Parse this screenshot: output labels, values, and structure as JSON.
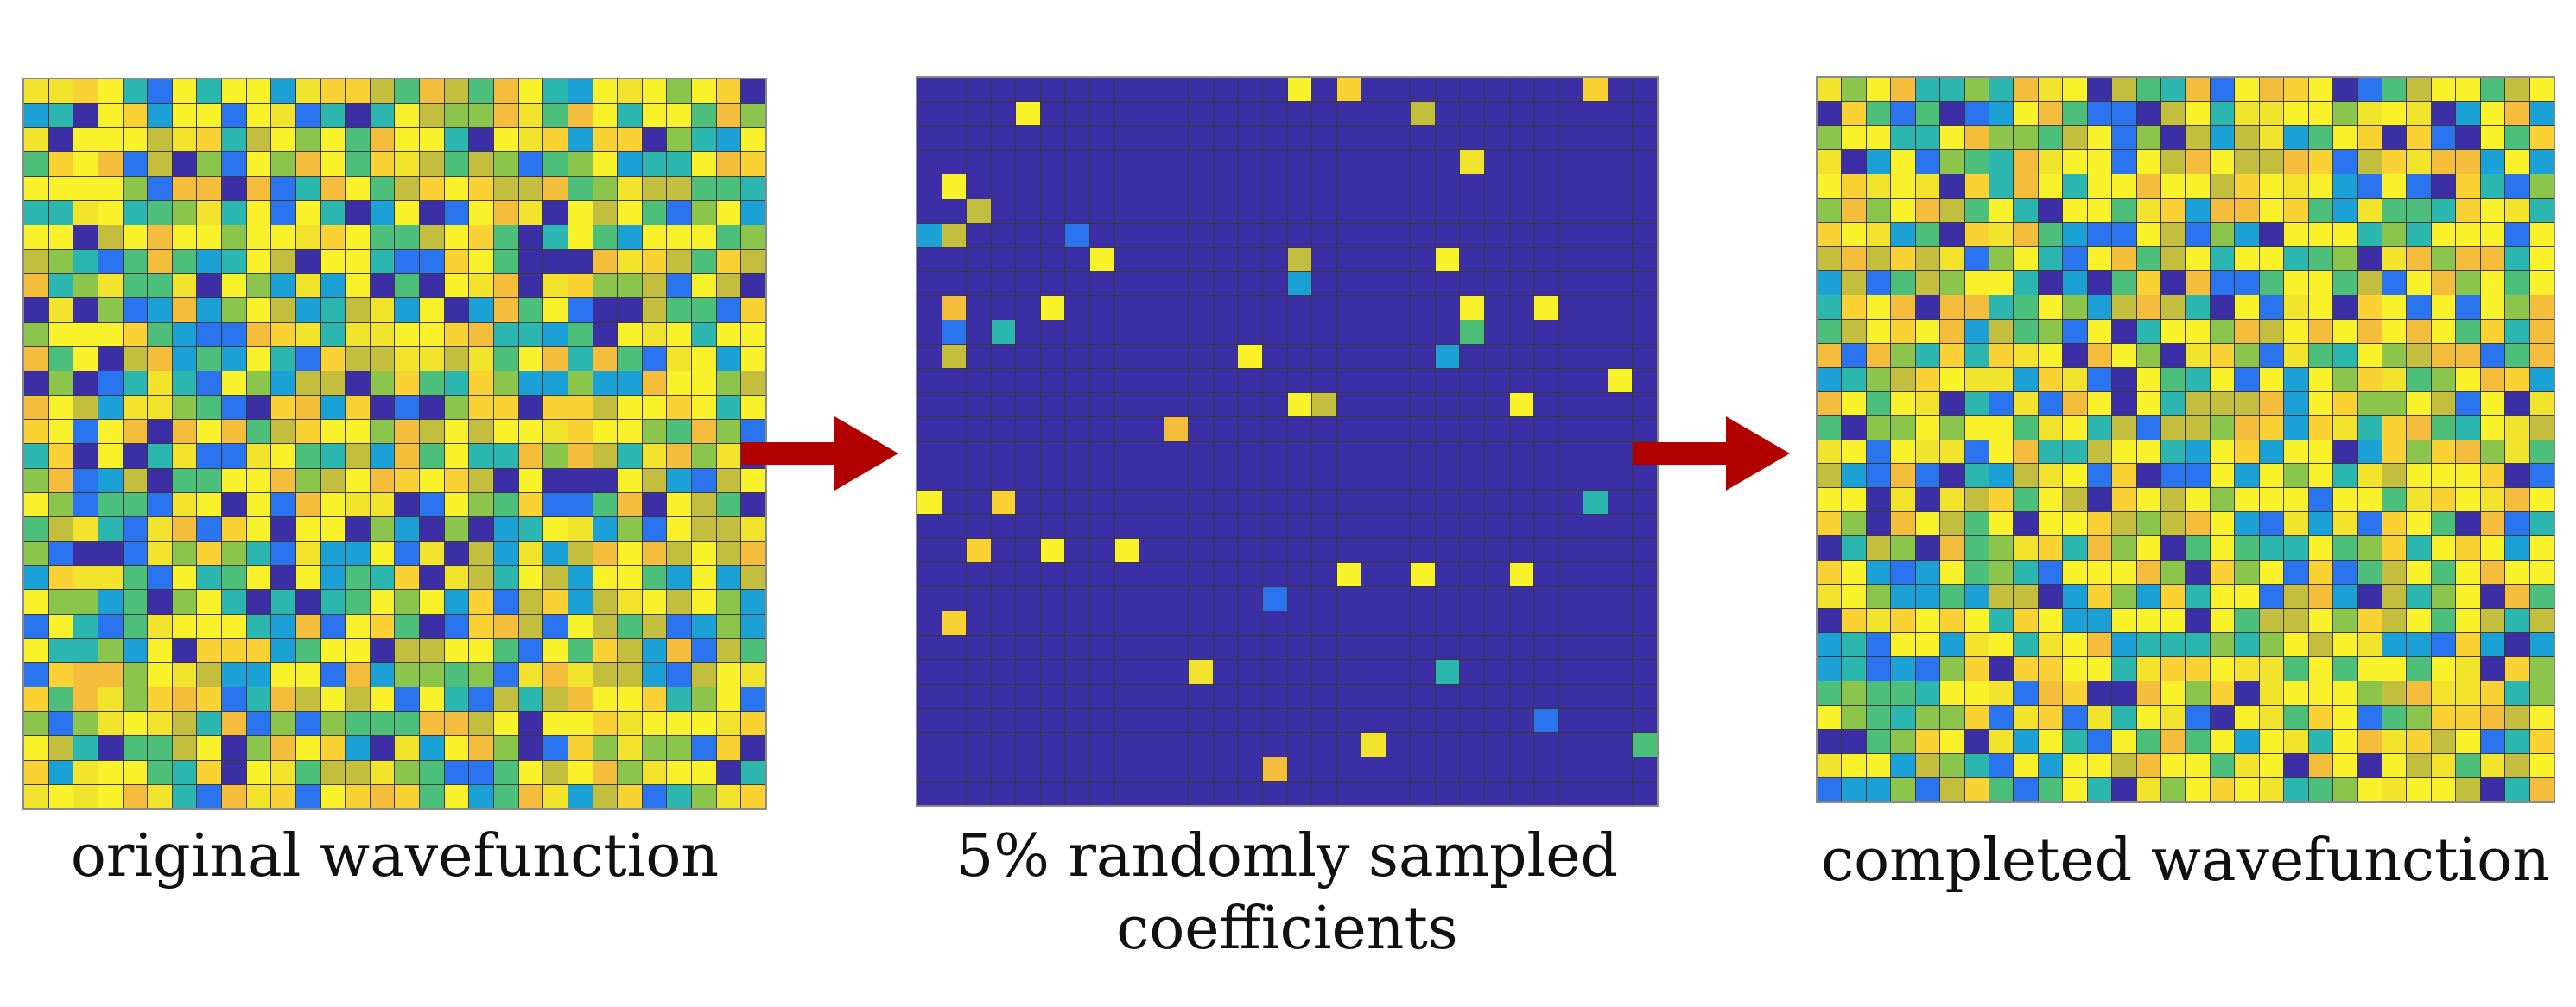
{
  "panels": [
    {
      "name": "original-wavefunction",
      "caption_lines": [
        "original wavefunction"
      ],
      "rows": 30,
      "cols": 30,
      "fill": "dense",
      "seed": 11
    },
    {
      "name": "sampled-coefficients",
      "caption_lines": [
        "5% randomly sampled",
        "coefficients"
      ],
      "rows": 30,
      "cols": 30,
      "fill": "sparse",
      "sample_fraction": 0.05,
      "seed": 29
    },
    {
      "name": "completed-wavefunction",
      "caption_lines": [
        "completed wavefunction"
      ],
      "rows": 30,
      "cols": 30,
      "fill": "dense",
      "seed": 47
    }
  ],
  "colors": {
    "background_cell": "#3c2fa6",
    "palette": [
      "#f9f12a",
      "#f9f12a",
      "#f9f12a",
      "#f2e42c",
      "#fbd234",
      "#f4be3c",
      "#c4be3e",
      "#8cc54c",
      "#4cbf7a",
      "#2bb7b0",
      "#1ca1d6",
      "#2a74ef",
      "#3c2fa6"
    ],
    "arrow": "#b00000"
  }
}
